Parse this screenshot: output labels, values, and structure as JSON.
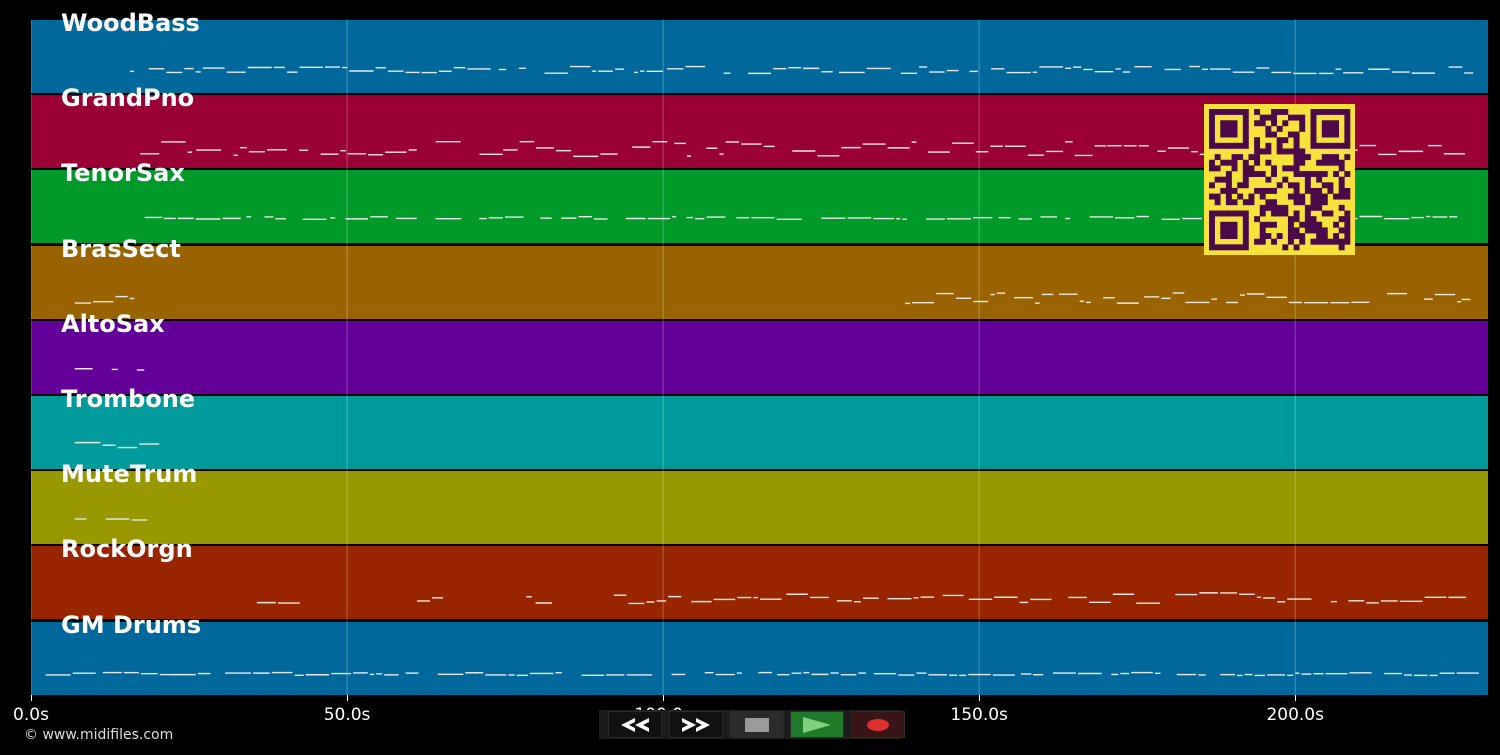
{
  "tracks": [
    {
      "name": "WoodBass",
      "color": "#00689b"
    },
    {
      "name": "GrandPno",
      "color": "#990033"
    },
    {
      "name": "TenorSax",
      "color": "#009a2b"
    },
    {
      "name": "BrasSect",
      "color": "#996300"
    },
    {
      "name": "AltoSax",
      "color": "#620099"
    },
    {
      "name": "Trombone",
      "color": "#009a9a"
    },
    {
      "name": "MuteTrum",
      "color": "#999800"
    },
    {
      "name": "RockOrgn",
      "color": "#992500"
    },
    {
      "name": "GM Drums",
      "color": "#00689b"
    }
  ],
  "timeline": {
    "ticks": [
      "0.0s",
      "50.0s",
      "100.0s",
      "150.0s",
      "200.0s"
    ],
    "tick_values": [
      0,
      50,
      100,
      150,
      200
    ],
    "max_seconds": 230.5
  },
  "copyright": "© www.midifiles.com",
  "transport": {
    "rewind_icon": "rewind-icon",
    "fast_forward_icon": "fast-forward-icon",
    "stop_icon": "stop-icon",
    "play_icon": "play-icon",
    "record_icon": "record-icon",
    "play_color": "#1f7a2a",
    "record_color": "#e03030"
  },
  "qr_code": {
    "foreground": "#4a0a4a",
    "background": "#f7e13b"
  }
}
